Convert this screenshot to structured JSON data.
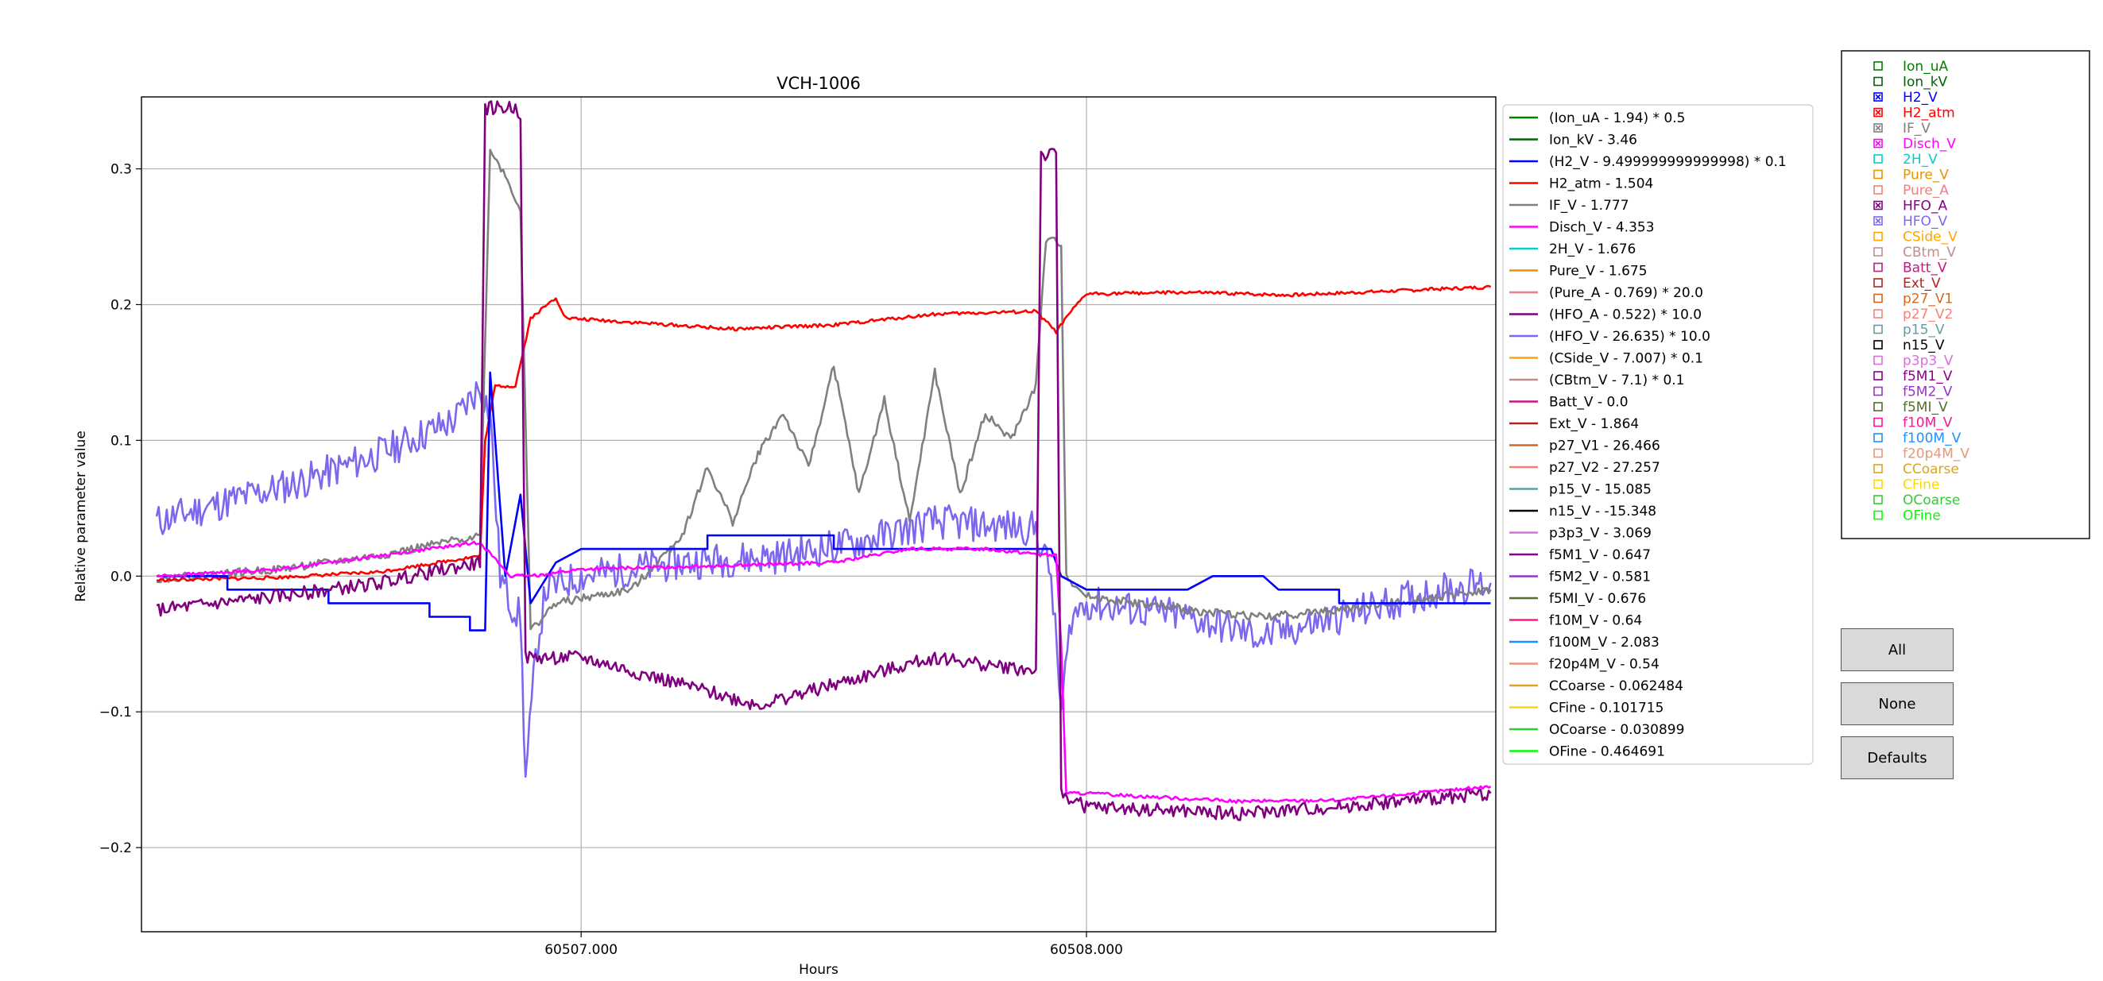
{
  "chart_data": {
    "type": "line",
    "title": "VCH-1006",
    "xlabel": "Hours",
    "ylabel": "Relative parameter value",
    "xlim": [
      60506.13,
      60508.81
    ],
    "ylim": [
      -0.262,
      0.353
    ],
    "x_ticks": [
      60507.0,
      60508.0
    ],
    "x_tick_labels": [
      "60507.000",
      "60508.000"
    ],
    "y_ticks": [
      -0.2,
      -0.1,
      0.0,
      0.1,
      0.2,
      0.3
    ],
    "y_tick_labels": [
      "−0.2",
      "−0.1",
      "0.0",
      "0.1",
      "0.2",
      "0.3"
    ],
    "grid": true,
    "legend_position": "right outside",
    "legend": [
      {
        "label": "(Ion_uA - 1.94) * 0.5",
        "color": "#008000"
      },
      {
        "label": "Ion_kV - 3.46",
        "color": "#006400"
      },
      {
        "label": "(H2_V - 9.499999999999998) * 0.1",
        "color": "#0000ff"
      },
      {
        "label": "H2_atm - 1.504",
        "color": "#ff0000"
      },
      {
        "label": "IF_V - 1.777",
        "color": "#808080"
      },
      {
        "label": "Disch_V - 4.353",
        "color": "#ff00ff"
      },
      {
        "label": "2H_V - 1.676",
        "color": "#00ced1"
      },
      {
        "label": "Pure_V - 1.675",
        "color": "#e69500"
      },
      {
        "label": "(Pure_A - 0.769) * 20.0",
        "color": "#f08080"
      },
      {
        "label": "(HFO_A - 0.522) * 10.0",
        "color": "#800080"
      },
      {
        "label": "(HFO_V - 26.635) * 10.0",
        "color": "#7b68ee"
      },
      {
        "label": "(CSide_V - 7.007) * 0.1",
        "color": "#ffa500"
      },
      {
        "label": "(CBtm_V - 7.1) * 0.1",
        "color": "#bc8f8f"
      },
      {
        "label": "Batt_V - 0.0",
        "color": "#c71585"
      },
      {
        "label": "Ext_V - 1.864",
        "color": "#b22222"
      },
      {
        "label": "p27_V1 - 26.466",
        "color": "#d2691e"
      },
      {
        "label": "p27_V2 - 27.257",
        "color": "#fa8072"
      },
      {
        "label": "p15_V - 15.085",
        "color": "#5f9ea0"
      },
      {
        "label": "n15_V - -15.348",
        "color": "#000000"
      },
      {
        "label": "p3p3_V - 3.069",
        "color": "#da70d6"
      },
      {
        "label": "f5M1_V - 0.647",
        "color": "#8b008b"
      },
      {
        "label": "f5M2_V - 0.581",
        "color": "#9932cc"
      },
      {
        "label": "f5MI_V - 0.676",
        "color": "#556b2f"
      },
      {
        "label": "f10M_V - 0.64",
        "color": "#ff1493"
      },
      {
        "label": "f100M_V - 2.083",
        "color": "#1e90ff"
      },
      {
        "label": "f20p4M_V - 0.54",
        "color": "#e9967a"
      },
      {
        "label": "CCoarse - 0.062484",
        "color": "#daa520"
      },
      {
        "label": "CFine - 0.101715",
        "color": "#ffd700"
      },
      {
        "label": "OCoarse - 0.030899",
        "color": "#32cd32"
      },
      {
        "label": "OFine - 0.464691",
        "color": "#00ff00"
      }
    ],
    "series": [
      {
        "name": "(HFO_V - 26.635) * 10.0",
        "color": "#7b68ee",
        "noise": 0.013,
        "seed": 11,
        "points": [
          [
            60506.16,
            0.04
          ],
          [
            60506.3,
            0.055
          ],
          [
            60506.45,
            0.07
          ],
          [
            60506.6,
            0.09
          ],
          [
            60506.75,
            0.115
          ],
          [
            60506.8,
            0.14
          ],
          [
            60506.82,
            0.12
          ],
          [
            60506.84,
            0.0
          ],
          [
            60506.86,
            -0.02
          ],
          [
            60506.88,
            -0.03
          ],
          [
            60506.89,
            -0.15
          ],
          [
            60506.91,
            -0.06
          ],
          [
            60506.93,
            -0.01
          ],
          [
            60507.0,
            0.0
          ],
          [
            60507.2,
            0.01
          ],
          [
            60507.4,
            0.015
          ],
          [
            60507.55,
            0.025
          ],
          [
            60507.7,
            0.04
          ],
          [
            60507.9,
            0.035
          ],
          [
            60507.93,
            0.0
          ],
          [
            60507.95,
            -0.1
          ],
          [
            60507.97,
            -0.03
          ],
          [
            60508.0,
            -0.02
          ],
          [
            60508.2,
            -0.03
          ],
          [
            60508.35,
            -0.045
          ],
          [
            60508.5,
            -0.03
          ],
          [
            60508.7,
            -0.01
          ],
          [
            60508.8,
            -0.005
          ]
        ]
      },
      {
        "name": "IF_V - 1.777",
        "color": "#808080",
        "noise": 0.003,
        "seed": 22,
        "points": [
          [
            60506.16,
            -0.002
          ],
          [
            60506.4,
            0.005
          ],
          [
            60506.6,
            0.015
          ],
          [
            60506.8,
            0.03
          ],
          [
            60506.82,
            0.315
          ],
          [
            60506.85,
            0.295
          ],
          [
            60506.88,
            0.27
          ],
          [
            60506.9,
            -0.04
          ],
          [
            60506.95,
            -0.02
          ],
          [
            60507.1,
            -0.01
          ],
          [
            60507.2,
            0.03
          ],
          [
            60507.25,
            0.08
          ],
          [
            60507.3,
            0.04
          ],
          [
            60507.35,
            0.09
          ],
          [
            60507.4,
            0.12
          ],
          [
            60507.45,
            0.08
          ],
          [
            60507.5,
            0.155
          ],
          [
            60507.55,
            0.06
          ],
          [
            60507.6,
            0.13
          ],
          [
            60507.65,
            0.04
          ],
          [
            60507.7,
            0.15
          ],
          [
            60507.75,
            0.06
          ],
          [
            60507.8,
            0.12
          ],
          [
            60507.85,
            0.1
          ],
          [
            60507.9,
            0.14
          ],
          [
            60507.92,
            0.248
          ],
          [
            60507.95,
            0.245
          ],
          [
            60507.96,
            0.0
          ],
          [
            60508.0,
            -0.015
          ],
          [
            60508.2,
            -0.025
          ],
          [
            60508.35,
            -0.03
          ],
          [
            60508.5,
            -0.025
          ],
          [
            60508.8,
            -0.01
          ]
        ]
      },
      {
        "name": "H2_atm - 1.504",
        "color": "#ff0000",
        "noise": 0.0012,
        "seed": 33,
        "points": [
          [
            60506.16,
            -0.003
          ],
          [
            60506.4,
            -0.001
          ],
          [
            60506.6,
            0.003
          ],
          [
            60506.8,
            0.015
          ],
          [
            60506.81,
            0.1
          ],
          [
            60506.83,
            0.14
          ],
          [
            60506.87,
            0.14
          ],
          [
            60506.9,
            0.19
          ],
          [
            60506.95,
            0.205
          ],
          [
            60506.97,
            0.19
          ],
          [
            60507.1,
            0.187
          ],
          [
            60507.3,
            0.182
          ],
          [
            60507.5,
            0.185
          ],
          [
            60507.7,
            0.193
          ],
          [
            60507.9,
            0.195
          ],
          [
            60507.94,
            0.18
          ],
          [
            60507.97,
            0.195
          ],
          [
            60508.0,
            0.208
          ],
          [
            60508.2,
            0.209
          ],
          [
            60508.4,
            0.207
          ],
          [
            60508.6,
            0.21
          ],
          [
            60508.8,
            0.213
          ]
        ]
      },
      {
        "name": "(H2_V - 9.499999999999998) * 0.1",
        "color": "#0000ff",
        "noise": 0.0,
        "seed": 44,
        "points": [
          [
            60506.16,
            0.0
          ],
          [
            60506.3,
            0.0
          ],
          [
            60506.3,
            -0.01
          ],
          [
            60506.5,
            -0.01
          ],
          [
            60506.5,
            -0.02
          ],
          [
            60506.7,
            -0.02
          ],
          [
            60506.7,
            -0.03
          ],
          [
            60506.78,
            -0.03
          ],
          [
            60506.78,
            -0.04
          ],
          [
            60506.81,
            -0.04
          ],
          [
            60506.82,
            0.15
          ],
          [
            60506.85,
            0.0
          ],
          [
            60506.88,
            0.06
          ],
          [
            60506.9,
            -0.02
          ],
          [
            60506.95,
            0.01
          ],
          [
            60507.0,
            0.02
          ],
          [
            60507.25,
            0.02
          ],
          [
            60507.25,
            0.03
          ],
          [
            60507.5,
            0.03
          ],
          [
            60507.5,
            0.02
          ],
          [
            60507.8,
            0.02
          ],
          [
            60507.93,
            0.02
          ],
          [
            60507.95,
            0.0
          ],
          [
            60508.0,
            -0.01
          ],
          [
            60508.2,
            -0.01
          ],
          [
            60508.25,
            0.0
          ],
          [
            60508.35,
            0.0
          ],
          [
            60508.38,
            -0.01
          ],
          [
            60508.5,
            -0.01
          ],
          [
            60508.5,
            -0.02
          ],
          [
            60508.8,
            -0.02
          ]
        ]
      },
      {
        "name": "Disch_V - 4.353",
        "color": "#ff00ff",
        "noise": 0.0012,
        "seed": 55,
        "points": [
          [
            60506.16,
            0.0
          ],
          [
            60506.4,
            0.005
          ],
          [
            60506.6,
            0.015
          ],
          [
            60506.8,
            0.025
          ],
          [
            60506.86,
            0.0
          ],
          [
            60506.9,
            0.0
          ],
          [
            60507.0,
            0.005
          ],
          [
            60507.3,
            0.008
          ],
          [
            60507.5,
            0.01
          ],
          [
            60507.65,
            0.02
          ],
          [
            60507.8,
            0.02
          ],
          [
            60507.94,
            0.015
          ],
          [
            60507.95,
            -0.05
          ],
          [
            60507.96,
            -0.16
          ],
          [
            60508.0,
            -0.16
          ],
          [
            60508.3,
            -0.166
          ],
          [
            60508.5,
            -0.165
          ],
          [
            60508.8,
            -0.155
          ]
        ]
      },
      {
        "name": "(HFO_A - 0.522) * 10.0",
        "color": "#800080",
        "noise": 0.005,
        "seed": 66,
        "points": [
          [
            60506.16,
            -0.025
          ],
          [
            60506.4,
            -0.015
          ],
          [
            60506.6,
            -0.005
          ],
          [
            60506.8,
            0.01
          ],
          [
            60506.81,
            0.345
          ],
          [
            60506.87,
            0.345
          ],
          [
            60506.88,
            0.34
          ],
          [
            60506.89,
            -0.06
          ],
          [
            60507.0,
            -0.06
          ],
          [
            60507.2,
            -0.08
          ],
          [
            60507.35,
            -0.095
          ],
          [
            60507.5,
            -0.08
          ],
          [
            60507.7,
            -0.06
          ],
          [
            60507.9,
            -0.07
          ],
          [
            60507.91,
            0.31
          ],
          [
            60507.94,
            0.31
          ],
          [
            60507.95,
            -0.16
          ],
          [
            60508.0,
            -0.17
          ],
          [
            60508.3,
            -0.175
          ],
          [
            60508.5,
            -0.17
          ],
          [
            60508.8,
            -0.16
          ]
        ]
      }
    ]
  },
  "check_panel": {
    "items": [
      {
        "label": "Ion_uA",
        "color": "#008000",
        "checked": false
      },
      {
        "label": "Ion_kV",
        "color": "#006400",
        "checked": false
      },
      {
        "label": "H2_V",
        "color": "#0000ff",
        "checked": true
      },
      {
        "label": "H2_atm",
        "color": "#ff0000",
        "checked": true
      },
      {
        "label": "IF_V",
        "color": "#808080",
        "checked": true
      },
      {
        "label": "Disch_V",
        "color": "#ff00ff",
        "checked": true
      },
      {
        "label": "2H_V",
        "color": "#00ced1",
        "checked": false
      },
      {
        "label": "Pure_V",
        "color": "#e69500",
        "checked": false
      },
      {
        "label": "Pure_A",
        "color": "#f08080",
        "checked": false
      },
      {
        "label": "HFO_A",
        "color": "#800080",
        "checked": true
      },
      {
        "label": "HFO_V",
        "color": "#7b68ee",
        "checked": true
      },
      {
        "label": "CSide_V",
        "color": "#ffa500",
        "checked": false
      },
      {
        "label": "CBtm_V",
        "color": "#bc8f8f",
        "checked": false
      },
      {
        "label": "Batt_V",
        "color": "#c71585",
        "checked": false
      },
      {
        "label": "Ext_V",
        "color": "#b22222",
        "checked": false
      },
      {
        "label": "p27_V1",
        "color": "#d2691e",
        "checked": false
      },
      {
        "label": "p27_V2",
        "color": "#fa8072",
        "checked": false
      },
      {
        "label": "p15_V",
        "color": "#5f9ea0",
        "checked": false
      },
      {
        "label": "n15_V",
        "color": "#000000",
        "checked": false
      },
      {
        "label": "p3p3_V",
        "color": "#da70d6",
        "checked": false
      },
      {
        "label": "f5M1_V",
        "color": "#8b008b",
        "checked": false
      },
      {
        "label": "f5M2_V",
        "color": "#9932cc",
        "checked": false
      },
      {
        "label": "f5MI_V",
        "color": "#556b2f",
        "checked": false
      },
      {
        "label": "f10M_V",
        "color": "#ff1493",
        "checked": false
      },
      {
        "label": "f100M_V",
        "color": "#1e90ff",
        "checked": false
      },
      {
        "label": "f20p4M_V",
        "color": "#e9967a",
        "checked": false
      },
      {
        "label": "CCoarse",
        "color": "#daa520",
        "checked": false
      },
      {
        "label": "CFine",
        "color": "#ffd700",
        "checked": false
      },
      {
        "label": "OCoarse",
        "color": "#32cd32",
        "checked": false
      },
      {
        "label": "OFine",
        "color": "#00ff00",
        "checked": false
      }
    ]
  },
  "buttons": {
    "all": "All",
    "none": "None",
    "defaults": "Defaults"
  }
}
